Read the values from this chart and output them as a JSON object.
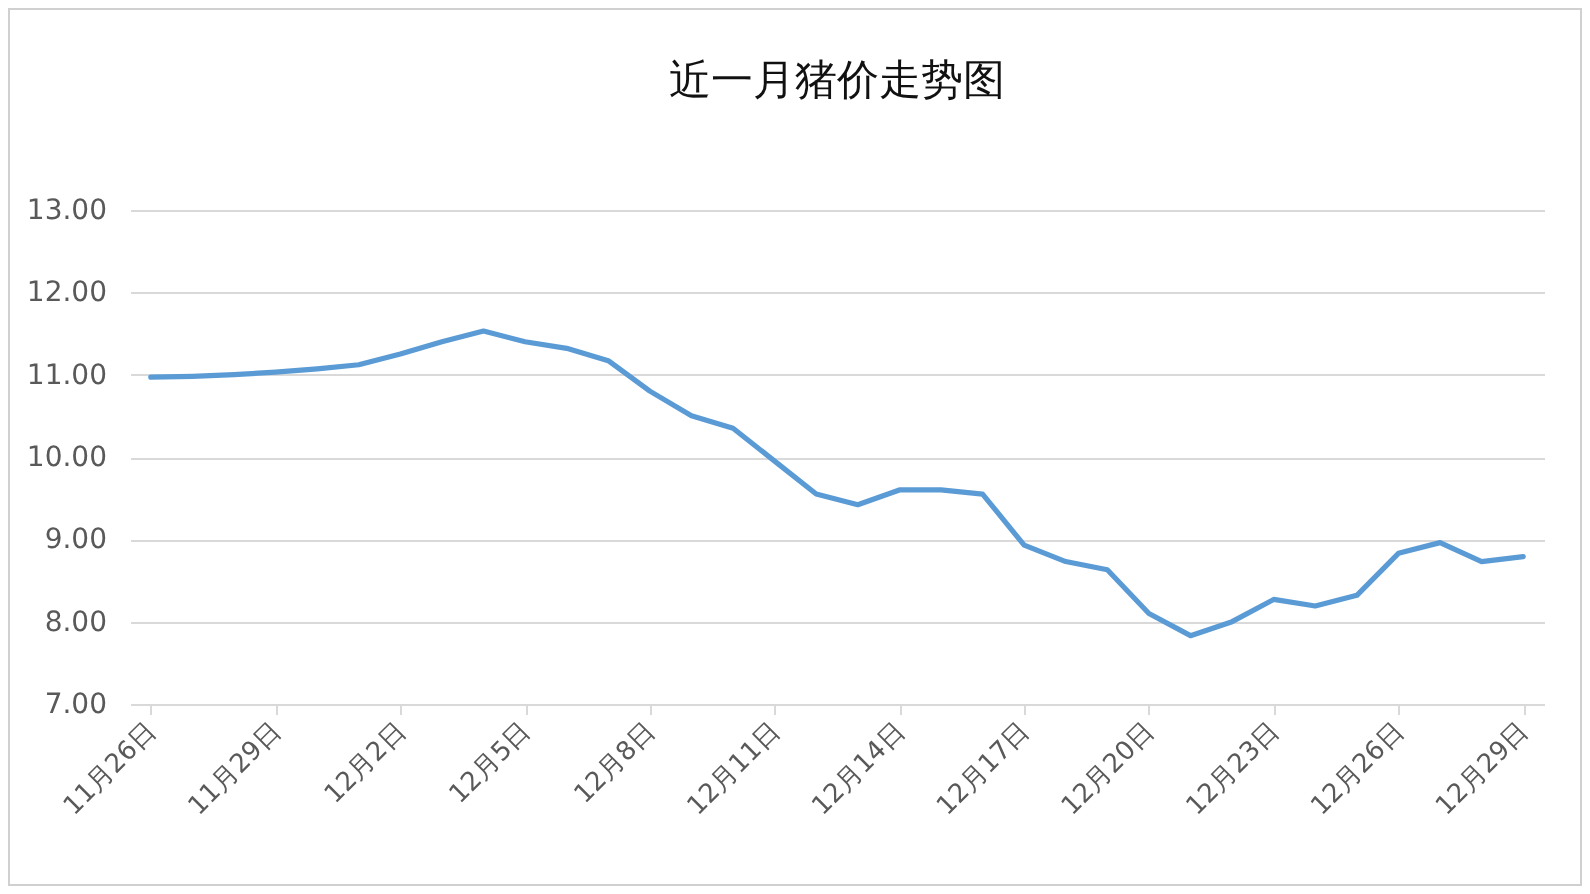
{
  "chart_data": {
    "type": "line",
    "title": "近一月猪价走势图",
    "categories": [
      "11月26日",
      null,
      null,
      "11月29日",
      null,
      null,
      "12月2日",
      null,
      null,
      "12月5日",
      null,
      null,
      "12月8日",
      null,
      null,
      "12月11日",
      null,
      null,
      "12月14日",
      null,
      null,
      "12月17日",
      null,
      null,
      "12月20日",
      null,
      null,
      "12月23日",
      null,
      null,
      "12月26日",
      null,
      null,
      "12月29日"
    ],
    "values": [
      10.97,
      10.98,
      11.0,
      11.03,
      11.07,
      11.12,
      11.25,
      11.4,
      11.53,
      11.4,
      11.32,
      11.17,
      10.8,
      10.5,
      10.35,
      9.95,
      9.55,
      9.42,
      9.6,
      9.6,
      9.55,
      8.93,
      8.73,
      8.63,
      8.1,
      7.83,
      8.0,
      8.27,
      8.19,
      8.32,
      8.83,
      8.96,
      8.73,
      8.79
    ],
    "color": "#5b9bd5",
    "ylim": [
      7,
      13
    ],
    "yticks": [
      {
        "value": 7,
        "label": "7.00"
      },
      {
        "value": 8,
        "label": "8.00"
      },
      {
        "value": 9,
        "label": "9.00"
      },
      {
        "value": 10,
        "label": "10.00"
      },
      {
        "value": 11,
        "label": "11.00"
      },
      {
        "value": 12,
        "label": "12.00"
      },
      {
        "value": 13,
        "label": "13.00"
      }
    ],
    "grid": "y",
    "marker": "none",
    "line_style": "solid"
  }
}
